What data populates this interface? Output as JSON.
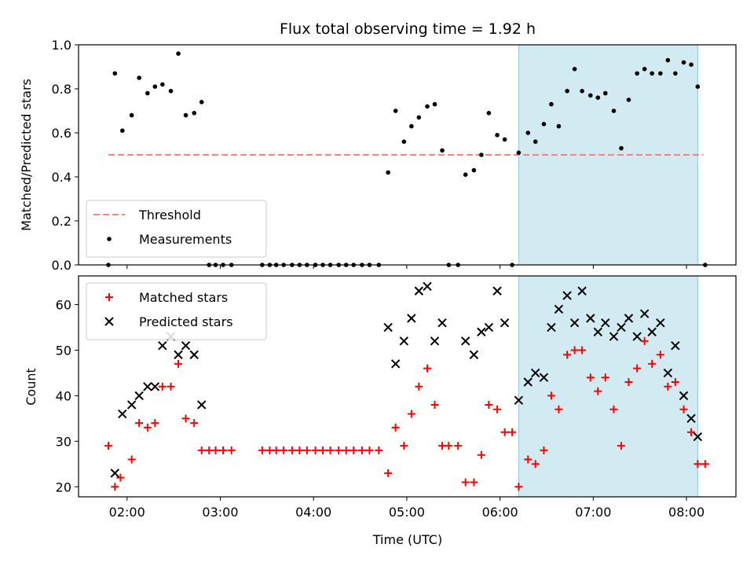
{
  "chart_data": [
    {
      "type": "scatter",
      "title": "Flux total observing time = 1.92 h",
      "xlabel": "",
      "ylabel": "Matched/Predicted stars",
      "xlim": [
        1.48,
        8.53
      ],
      "ylim": [
        0.0,
        1.0
      ],
      "yticks": [
        0.0,
        0.2,
        0.4,
        0.6,
        0.8,
        1.0
      ],
      "ytick_labels": [
        "0.0",
        "0.2",
        "0.4",
        "0.6",
        "0.8",
        "1.0"
      ],
      "xticks": [
        2,
        3,
        4,
        5,
        6,
        7,
        8
      ],
      "grid": false,
      "legend": "lower-left",
      "shaded_region": {
        "x": [
          6.2,
          8.12
        ],
        "color": "#add8e6"
      },
      "threshold": {
        "name": "Threshold",
        "value": 0.5,
        "x": [
          1.8,
          8.18
        ],
        "color": "#ff7f7f"
      },
      "series": [
        {
          "name": "Measurements",
          "color": "#000000",
          "x": [
            1.8,
            1.87,
            1.95,
            2.05,
            2.13,
            2.22,
            2.3,
            2.38,
            2.47,
            2.55,
            2.63,
            2.72,
            2.8,
            2.88,
            2.95,
            3.03,
            3.12,
            3.45,
            3.53,
            3.6,
            3.68,
            3.77,
            3.85,
            3.93,
            4.02,
            4.1,
            4.18,
            4.27,
            4.35,
            4.43,
            4.52,
            4.6,
            4.7,
            4.8,
            4.88,
            4.97,
            5.05,
            5.13,
            5.22,
            5.3,
            5.38,
            5.45,
            5.55,
            5.63,
            5.72,
            5.8,
            5.88,
            5.97,
            6.05,
            6.13,
            6.2,
            6.3,
            6.38,
            6.47,
            6.55,
            6.63,
            6.72,
            6.8,
            6.88,
            6.97,
            7.05,
            7.13,
            7.22,
            7.3,
            7.38,
            7.47,
            7.55,
            7.63,
            7.72,
            7.8,
            7.88,
            7.97,
            8.05,
            8.12,
            8.2
          ],
          "y": [
            0.0,
            0.87,
            0.61,
            0.68,
            0.85,
            0.78,
            0.81,
            0.82,
            0.79,
            0.96,
            0.68,
            0.69,
            0.74,
            0.0,
            0.0,
            0.0,
            0.0,
            0.0,
            0.0,
            0.0,
            0.0,
            0.0,
            0.0,
            0.0,
            0.0,
            0.0,
            0.0,
            0.0,
            0.0,
            0.0,
            0.0,
            0.0,
            0.0,
            0.42,
            0.7,
            0.56,
            0.63,
            0.67,
            0.72,
            0.73,
            0.52,
            0.0,
            0.0,
            0.41,
            0.43,
            0.5,
            0.69,
            0.59,
            0.57,
            0.0,
            0.51,
            0.6,
            0.56,
            0.64,
            0.73,
            0.63,
            0.79,
            0.89,
            0.79,
            0.77,
            0.76,
            0.78,
            0.7,
            0.53,
            0.75,
            0.87,
            0.89,
            0.87,
            0.87,
            0.93,
            0.87,
            0.92,
            0.91,
            0.81,
            0.0
          ]
        }
      ]
    },
    {
      "type": "scatter",
      "title": "",
      "xlabel": "Time (UTC)",
      "ylabel": "Count",
      "xlim": [
        1.48,
        8.53
      ],
      "ylim": [
        17.8,
        66.3
      ],
      "yticks": [
        20,
        30,
        40,
        50,
        60
      ],
      "xticks": [
        2,
        3,
        4,
        5,
        6,
        7,
        8
      ],
      "xtick_labels": [
        "02:00",
        "03:00",
        "04:00",
        "05:00",
        "06:00",
        "07:00",
        "08:00"
      ],
      "grid": false,
      "legend": "upper-left",
      "shaded_region": {
        "x": [
          6.2,
          8.12
        ],
        "color": "#add8e6"
      },
      "series": [
        {
          "name": "Matched stars",
          "marker": "plus",
          "color": "#ff0000",
          "x": [
            1.8,
            1.87,
            1.93,
            2.05,
            2.13,
            2.22,
            2.3,
            2.38,
            2.47,
            2.55,
            2.63,
            2.72,
            2.8,
            2.88,
            2.95,
            3.03,
            3.12,
            3.45,
            3.53,
            3.6,
            3.68,
            3.77,
            3.85,
            3.93,
            4.02,
            4.1,
            4.18,
            4.27,
            4.35,
            4.43,
            4.52,
            4.6,
            4.7,
            4.8,
            4.88,
            4.97,
            5.05,
            5.13,
            5.22,
            5.3,
            5.38,
            5.45,
            5.55,
            5.63,
            5.72,
            5.8,
            5.88,
            5.97,
            6.05,
            6.13,
            6.2,
            6.3,
            6.38,
            6.47,
            6.55,
            6.63,
            6.72,
            6.8,
            6.88,
            6.97,
            7.05,
            7.13,
            7.22,
            7.3,
            7.38,
            7.47,
            7.55,
            7.63,
            7.72,
            7.8,
            7.88,
            7.97,
            8.05,
            8.12,
            8.2
          ],
          "y": [
            29,
            20,
            22,
            26,
            34,
            33,
            34,
            42,
            42,
            47,
            35,
            34,
            28,
            28,
            28,
            28,
            28,
            28,
            28,
            28,
            28,
            28,
            28,
            28,
            28,
            28,
            28,
            28,
            28,
            28,
            28,
            28,
            28,
            23,
            33,
            29,
            36,
            42,
            46,
            38,
            29,
            29,
            29,
            21,
            21,
            27,
            38,
            37,
            32,
            32,
            20,
            26,
            25,
            28,
            40,
            37,
            49,
            50,
            50,
            44,
            41,
            44,
            37,
            29,
            43,
            46,
            52,
            47,
            49,
            42,
            43,
            37,
            32,
            25,
            25
          ]
        },
        {
          "name": "Predicted stars",
          "marker": "x",
          "color": "#000000",
          "x": [
            1.87,
            1.95,
            2.05,
            2.13,
            2.22,
            2.3,
            2.38,
            2.47,
            2.55,
            2.63,
            2.72,
            2.8,
            4.8,
            4.88,
            4.97,
            5.05,
            5.13,
            5.22,
            5.3,
            5.38,
            5.63,
            5.72,
            5.8,
            5.88,
            5.97,
            6.05,
            6.2,
            6.3,
            6.38,
            6.47,
            6.55,
            6.63,
            6.72,
            6.8,
            6.88,
            6.97,
            7.05,
            7.13,
            7.22,
            7.3,
            7.38,
            7.47,
            7.55,
            7.63,
            7.72,
            7.8,
            7.88,
            7.97,
            8.05,
            8.12
          ],
          "y": [
            23,
            36,
            38,
            40,
            42,
            42,
            51,
            53,
            49,
            51,
            49,
            38,
            55,
            47,
            52,
            57,
            63,
            64,
            52,
            56,
            52,
            49,
            54,
            55,
            63,
            56,
            39,
            43,
            45,
            44,
            55,
            59,
            62,
            56,
            63,
            57,
            54,
            56,
            53,
            55,
            57,
            53,
            58,
            54,
            56,
            45,
            51,
            40,
            35,
            31
          ]
        }
      ]
    }
  ]
}
